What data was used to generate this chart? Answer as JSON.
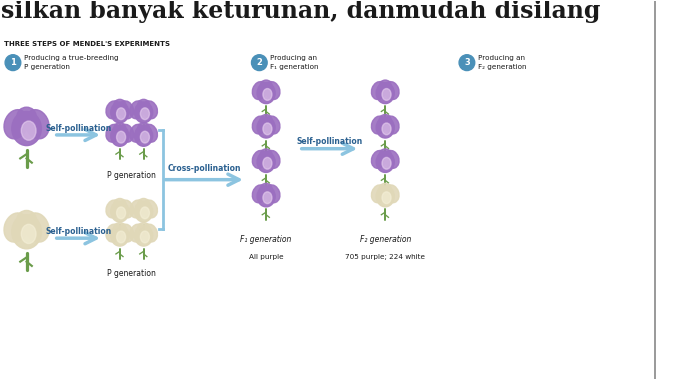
{
  "bg_color": "#ffffff",
  "title_text": "silkan banyak keturunan, danmudah disilang",
  "subtitle": "THREE STEPS OF MENDEL'S EXPERIMENTS",
  "step1_text": "Producing a true-breeding\nP generation",
  "step2_text": "Producing an\nF₁ generation",
  "step3_text": "Producing an\nF₂ generation",
  "self_poll_top": "Self-pollination",
  "self_poll_bot": "Self-pollination",
  "self_poll_right": "Self-pollination",
  "cross_poll": "Cross-pollination",
  "p_gen_top": "P generation",
  "p_gen_bot": "P generation",
  "f1_gen_label": "F₁ generation",
  "f1_gen_sub": "All purple",
  "f2_gen_label": "F₂ generation",
  "f2_gen_sub": "705 purple; 224 white",
  "purple_hi": "#c9a8e0",
  "purple_mid": "#9b6fc0",
  "purple_dark": "#7a50a0",
  "purple_inner": "#e8d0f0",
  "white_hi": "#f5f0d8",
  "white_mid": "#e0d8b8",
  "white_dark": "#c8c0a0",
  "stem_color": "#6a9c4a",
  "arrow_color": "#8cc4e0",
  "step_circle_color": "#4a90b8",
  "text_dark": "#1a1a1a",
  "text_blue": "#2a6090",
  "divider_color": "#888888",
  "figsize": [
    6.82,
    3.8
  ],
  "dpi": 100
}
